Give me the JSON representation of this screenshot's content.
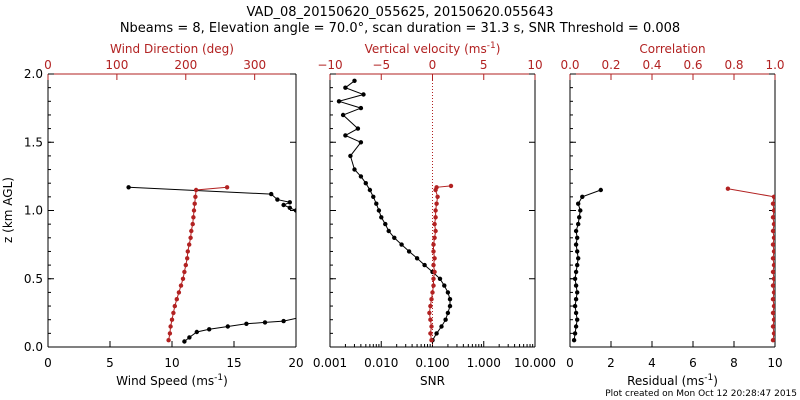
{
  "title": {
    "line1": "VAD_08_20150620_055625, 20150620.055643",
    "line2": "Nbeams = 8, Elevation angle = 70.0°, scan duration = 31.3 s, SNR Threshold = 0.008"
  },
  "footer": "Plot created on Mon Oct 12 20:28:47 2015",
  "colors": {
    "black": "#000000",
    "red": "#b22222"
  },
  "y_axis": {
    "label_main": "z (km AGL)",
    "range": [
      0.0,
      2.0
    ],
    "ticks": [
      "0.0",
      "0.5",
      "1.0",
      "1.5",
      "2.0"
    ]
  },
  "chart_data": [
    {
      "type": "line",
      "panel": "left",
      "xlabel_bottom": "Wind Speed (ms",
      "xlabel_bottom_sup": "-1",
      "xlabel_bottom_tail": ")",
      "xlim_bottom": [
        0,
        20
      ],
      "xticks_bottom": [
        "0",
        "5",
        "10",
        "15",
        "20"
      ],
      "xlabel_top": "Wind Direction (deg)",
      "xlim_top": [
        0,
        360
      ],
      "xticks_top": [
        "0",
        "100",
        "200",
        "300"
      ],
      "series": [
        {
          "color": "black",
          "axis": "bottom",
          "x": [
            11.0,
            11.4,
            12.0,
            13.0,
            14.5,
            16.0,
            17.5,
            19.0,
            20.5,
            20.0,
            19.5,
            19.0,
            19.5,
            18.5,
            18.0,
            6.5
          ],
          "y": [
            0.04,
            0.07,
            0.11,
            0.13,
            0.15,
            0.17,
            0.18,
            0.19,
            0.22,
            1.0,
            1.02,
            1.04,
            1.06,
            1.08,
            1.12,
            1.17
          ]
        },
        {
          "color": "red",
          "axis": "top",
          "x": [
            175,
            177,
            178,
            180,
            182,
            184,
            187,
            190,
            193,
            196,
            198,
            200,
            202,
            203,
            205,
            207,
            208,
            210,
            211,
            212,
            213,
            214,
            215,
            260
          ],
          "y": [
            0.05,
            0.1,
            0.15,
            0.2,
            0.25,
            0.3,
            0.35,
            0.4,
            0.45,
            0.5,
            0.55,
            0.6,
            0.65,
            0.7,
            0.75,
            0.8,
            0.85,
            0.9,
            0.95,
            1.0,
            1.05,
            1.1,
            1.15,
            1.17
          ]
        }
      ]
    },
    {
      "type": "line",
      "panel": "middle",
      "xlabel_bottom": "SNR",
      "xscale_bottom": "log",
      "xlim_bottom": [
        0.001,
        10.0
      ],
      "xticks_bottom": [
        "0.001",
        "0.010",
        "0.100",
        "1.000",
        "10.000"
      ],
      "xlabel_top": "Vertical velocity (ms",
      "xlabel_top_sup": "-1",
      "xlabel_top_tail": ")",
      "xlim_top": [
        -10,
        10
      ],
      "xticks_top": [
        "−10",
        "−5",
        "0",
        "5",
        "10"
      ],
      "zero_line": 0,
      "series": [
        {
          "color": "black",
          "axis": "bottom",
          "x": [
            0.1,
            0.12,
            0.15,
            0.18,
            0.2,
            0.22,
            0.22,
            0.2,
            0.17,
            0.14,
            0.1,
            0.07,
            0.05,
            0.035,
            0.025,
            0.018,
            0.014,
            0.012,
            0.01,
            0.009,
            0.008,
            0.007,
            0.006,
            0.005,
            0.004,
            0.003,
            0.0025,
            0.004,
            0.002,
            0.0035,
            0.0018,
            0.004,
            0.0015,
            0.0045,
            0.002,
            0.003
          ],
          "y": [
            0.05,
            0.1,
            0.15,
            0.2,
            0.25,
            0.3,
            0.35,
            0.4,
            0.45,
            0.5,
            0.55,
            0.6,
            0.65,
            0.7,
            0.75,
            0.8,
            0.85,
            0.9,
            0.95,
            1.0,
            1.05,
            1.1,
            1.15,
            1.2,
            1.25,
            1.3,
            1.4,
            1.5,
            1.55,
            1.6,
            1.7,
            1.75,
            1.8,
            1.85,
            1.9,
            1.95
          ]
        },
        {
          "color": "red",
          "axis": "top",
          "x": [
            -0.1,
            -0.2,
            -0.1,
            -0.2,
            -0.3,
            -0.2,
            -0.1,
            0.0,
            0.1,
            0.1,
            0.2,
            0.1,
            0.2,
            0.1,
            0.1,
            0.2,
            0.3,
            0.2,
            0.3,
            0.3,
            0.4,
            0.5,
            0.3,
            0.4,
            1.8
          ],
          "y": [
            0.05,
            0.1,
            0.15,
            0.2,
            0.25,
            0.3,
            0.35,
            0.4,
            0.45,
            0.5,
            0.55,
            0.6,
            0.65,
            0.7,
            0.75,
            0.8,
            0.85,
            0.9,
            0.95,
            1.0,
            1.05,
            1.1,
            1.15,
            1.17,
            1.18
          ]
        }
      ]
    },
    {
      "type": "line",
      "panel": "right",
      "xlabel_bottom": "Residual (ms",
      "xlabel_bottom_sup": "-1",
      "xlabel_bottom_tail": ")",
      "xlim_bottom": [
        0,
        10
      ],
      "xticks_bottom": [
        "0",
        "2",
        "4",
        "6",
        "8",
        "10"
      ],
      "xlabel_top": "Correlation",
      "xlim_top": [
        0.0,
        1.0
      ],
      "xticks_top": [
        "0.0",
        "0.2",
        "0.4",
        "0.6",
        "0.8",
        "1.0"
      ],
      "series": [
        {
          "color": "black",
          "axis": "bottom",
          "x": [
            0.2,
            0.25,
            0.3,
            0.35,
            0.3,
            0.25,
            0.3,
            0.35,
            0.3,
            0.25,
            0.3,
            0.35,
            0.4,
            0.35,
            0.3,
            0.35,
            0.3,
            0.4,
            0.45,
            0.5,
            0.4,
            0.6,
            1.5
          ],
          "y": [
            0.05,
            0.1,
            0.15,
            0.2,
            0.25,
            0.3,
            0.35,
            0.4,
            0.45,
            0.5,
            0.55,
            0.6,
            0.65,
            0.7,
            0.75,
            0.8,
            0.85,
            0.9,
            0.95,
            1.0,
            1.05,
            1.1,
            1.15
          ]
        },
        {
          "color": "red",
          "axis": "top",
          "x": [
            0.99,
            0.995,
            0.99,
            0.995,
            0.99,
            0.995,
            0.99,
            0.995,
            0.99,
            0.995,
            0.99,
            0.995,
            0.99,
            0.995,
            0.99,
            0.995,
            0.99,
            0.995,
            0.99,
            0.995,
            0.99,
            0.995,
            0.77
          ],
          "y": [
            0.05,
            0.1,
            0.15,
            0.2,
            0.25,
            0.3,
            0.35,
            0.4,
            0.45,
            0.5,
            0.55,
            0.6,
            0.65,
            0.7,
            0.75,
            0.8,
            0.85,
            0.9,
            0.95,
            1.0,
            1.05,
            1.1,
            1.16
          ]
        }
      ]
    }
  ]
}
